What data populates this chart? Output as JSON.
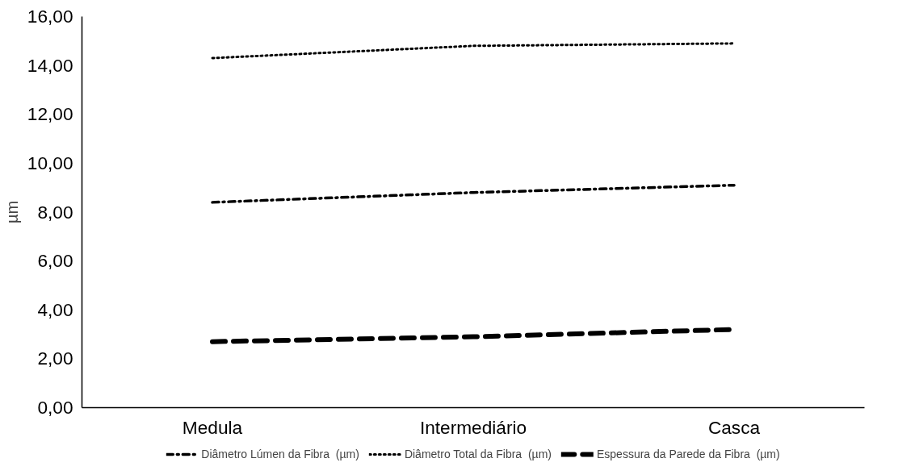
{
  "chart_data": {
    "type": "line",
    "ylabel": "µm",
    "categories": [
      "Medula",
      "Intermediário",
      "Casca"
    ],
    "series": [
      {
        "name": "Diâmetro Lúmen da Fibra  (µm)",
        "color": "#000000",
        "line_style": "dashdot",
        "values": [
          8.4,
          8.8,
          9.1
        ]
      },
      {
        "name": "Diâmetro Total da Fibra  (µm)",
        "color": "#000000",
        "line_style": "dotted",
        "values": [
          14.3,
          14.8,
          14.9
        ]
      },
      {
        "name": "Espessura da Parede da Fibra  (µm)",
        "color": "#000000",
        "line_style": "dashed",
        "values": [
          2.7,
          2.9,
          3.2
        ]
      }
    ],
    "ylim": [
      0,
      16
    ],
    "yticks": [
      {
        "value": 0,
        "label": "0,00"
      },
      {
        "value": 2,
        "label": "2,00"
      },
      {
        "value": 4,
        "label": "4,00"
      },
      {
        "value": 6,
        "label": "6,00"
      },
      {
        "value": 8,
        "label": "8,00"
      },
      {
        "value": 10,
        "label": "10,00"
      },
      {
        "value": 12,
        "label": "12,00"
      },
      {
        "value": 14,
        "label": "14,00"
      },
      {
        "value": 16,
        "label": "16,00"
      }
    ],
    "grid": false,
    "legend": "bottom"
  }
}
